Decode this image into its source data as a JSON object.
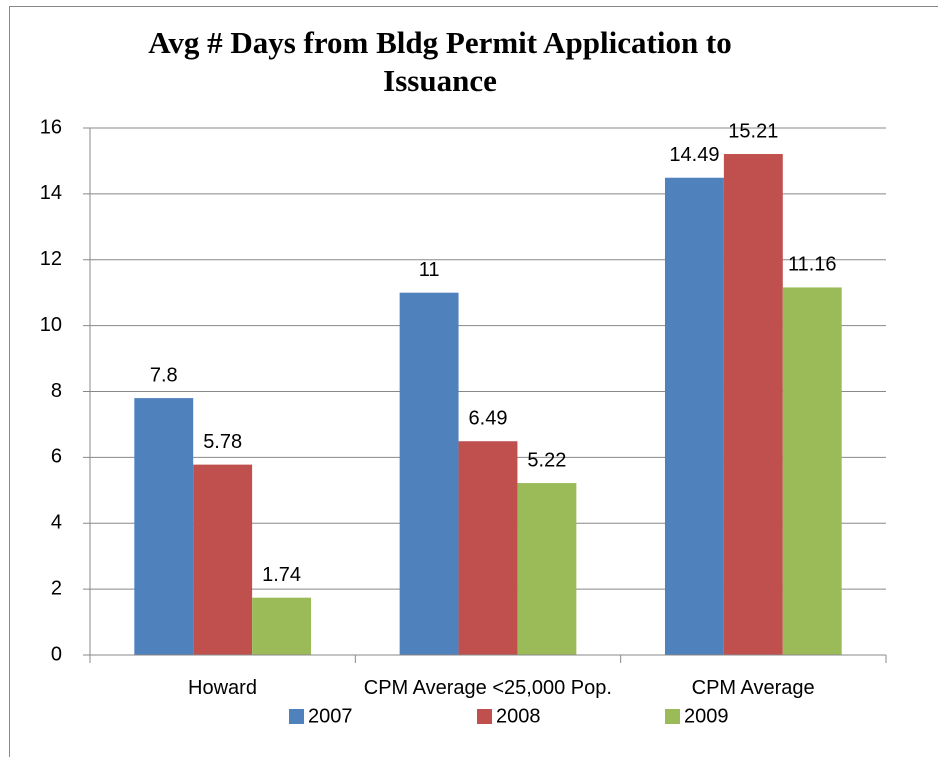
{
  "chart_data": {
    "type": "bar",
    "title": "Avg # Days from Bldg Permit Application to Issuance",
    "categories": [
      "Howard",
      "CPM Average <25,000 Pop.",
      "CPM Average"
    ],
    "series": [
      {
        "name": "2007",
        "color": "#4f81bd",
        "values": [
          7.8,
          11,
          14.49
        ]
      },
      {
        "name": "2008",
        "color": "#c0504d",
        "values": [
          5.78,
          6.49,
          15.21
        ]
      },
      {
        "name": "2009",
        "color": "#9bbb59",
        "values": [
          1.74,
          5.22,
          11.16
        ]
      }
    ],
    "ylim": [
      0,
      16
    ],
    "yticks": [
      0,
      2,
      4,
      6,
      8,
      10,
      12,
      14,
      16
    ],
    "grid": true,
    "legend": "bottom"
  }
}
